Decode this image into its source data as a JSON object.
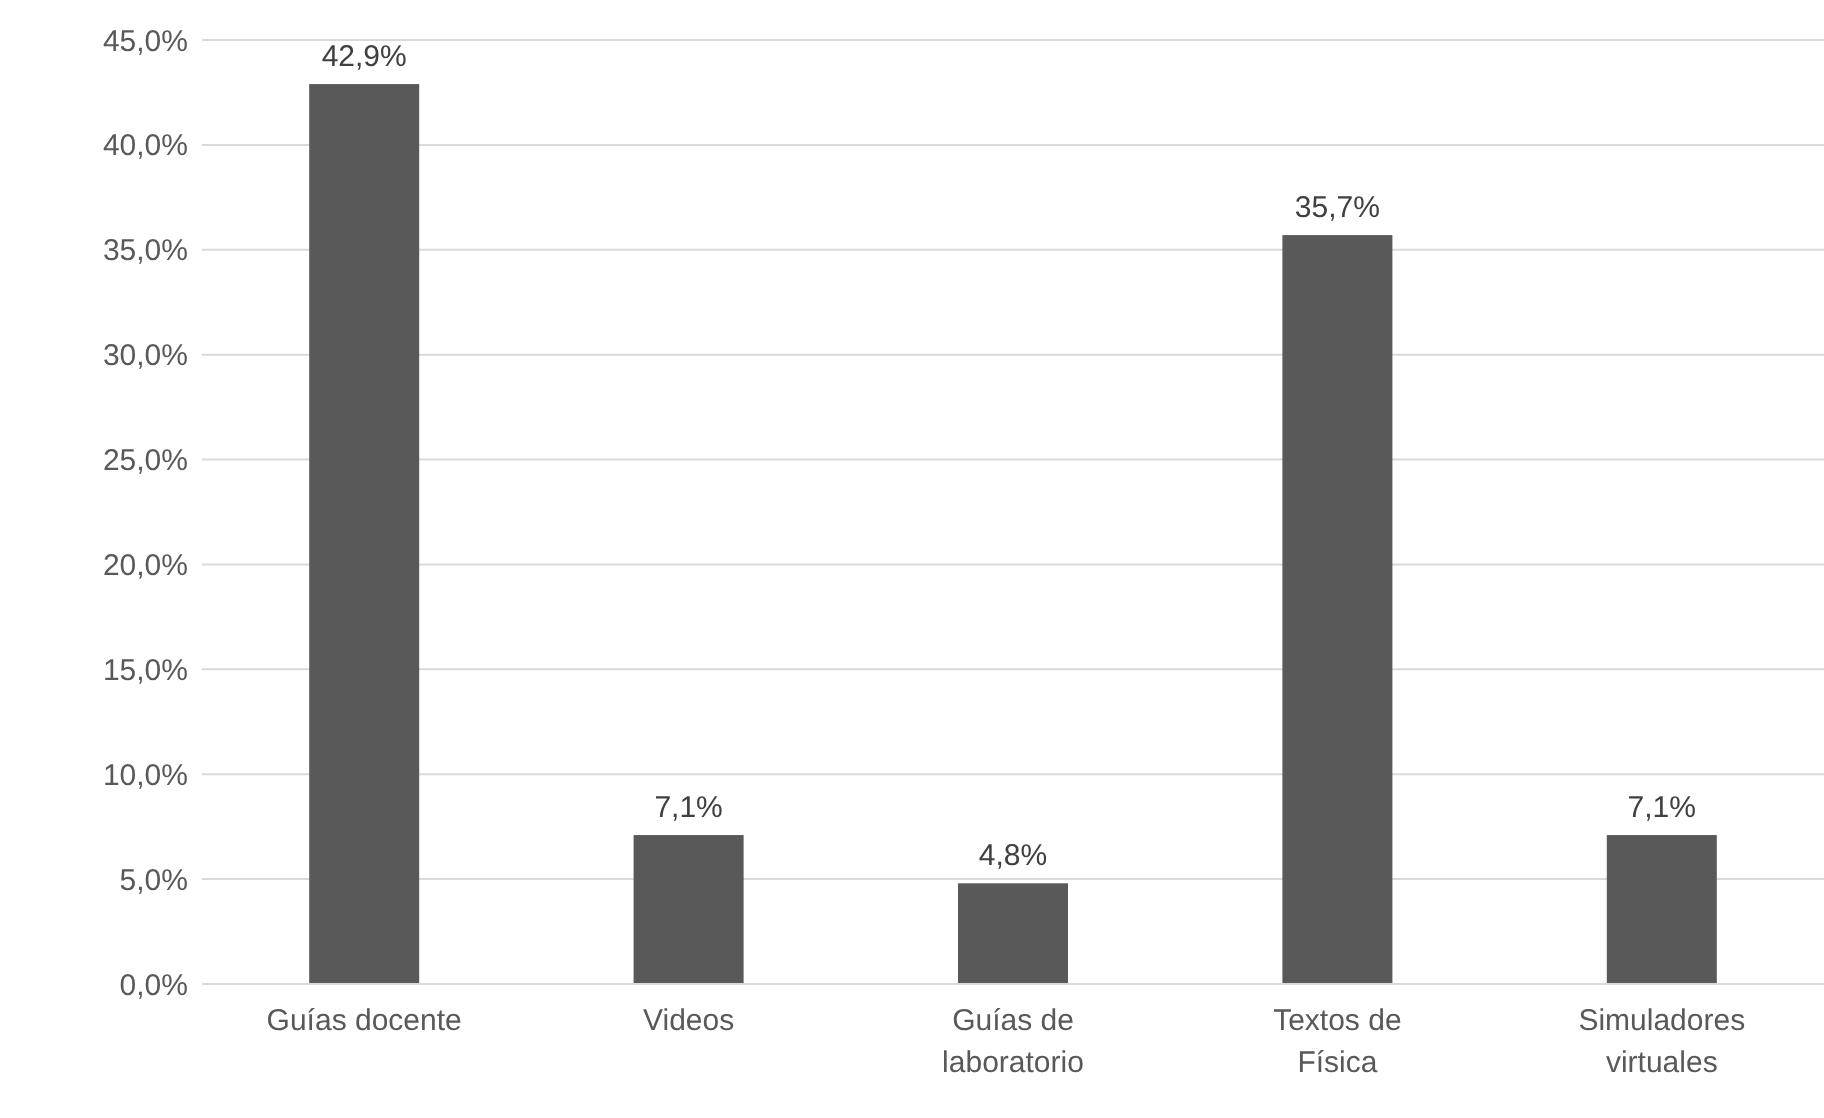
{
  "chart_data": {
    "type": "bar",
    "categories": [
      "Guías docente",
      "Videos",
      "Guías de laboratorio",
      "Textos de Física",
      "Simuladores virtuales"
    ],
    "values": [
      42.9,
      7.1,
      4.8,
      35.7,
      7.1
    ],
    "value_labels": [
      "42,9%",
      "7,1%",
      "4,8%",
      "35,7%",
      "7,1%"
    ],
    "color": "#595959",
    "ylim": [
      0,
      45
    ],
    "yticks": [
      {
        "value": 0,
        "label": "0,0%"
      },
      {
        "value": 5,
        "label": "5,0%"
      },
      {
        "value": 10,
        "label": "10,0%"
      },
      {
        "value": 15,
        "label": "15,0%"
      },
      {
        "value": 20,
        "label": "20,0%"
      },
      {
        "value": 25,
        "label": "25,0%"
      },
      {
        "value": 30,
        "label": "30,0%"
      },
      {
        "value": 35,
        "label": "35,0%"
      },
      {
        "value": 40,
        "label": "40,0%"
      },
      {
        "value": 45,
        "label": "45,0%"
      }
    ],
    "grid": "y"
  }
}
